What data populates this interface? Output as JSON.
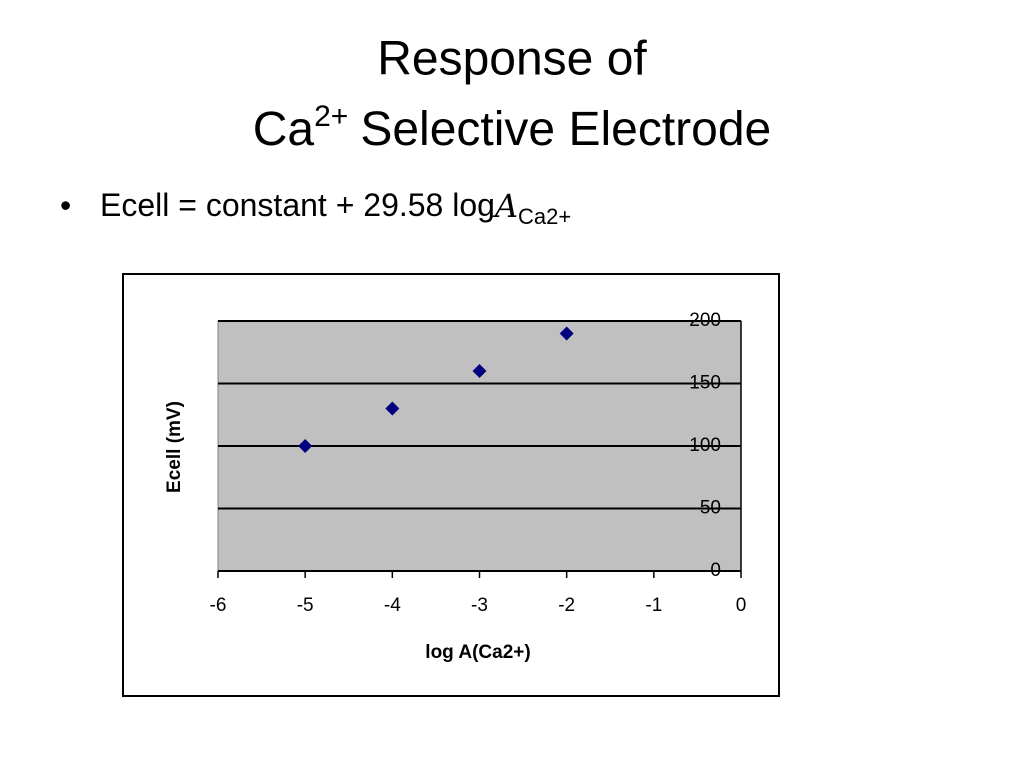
{
  "slide": {
    "title": {
      "line1": "Response of",
      "line2_base": "Ca",
      "line2_sup": "2+",
      "line2_rest": "Selective Electrode"
    },
    "bullet": {
      "text": "Ecell = constant + 29.58 log",
      "symbol": "A",
      "subscript": "Ca2+"
    }
  },
  "chart_data": {
    "type": "scatter",
    "x_label": "log A(Ca2+)",
    "y_label": "Ecell (mV)",
    "x": [
      -5,
      -4,
      -3,
      -2
    ],
    "values": [
      100,
      130,
      160,
      190
    ],
    "color": "#000080",
    "xlim": [
      -6,
      0
    ],
    "xticks": [
      -6,
      -5,
      -4,
      -3,
      -2,
      -1,
      0
    ],
    "ylim": [
      0,
      200
    ],
    "yticks": [
      0,
      50,
      100,
      150,
      200
    ],
    "grid": true,
    "y_axis_side": "right",
    "plot_background": "#c0c0c0"
  }
}
